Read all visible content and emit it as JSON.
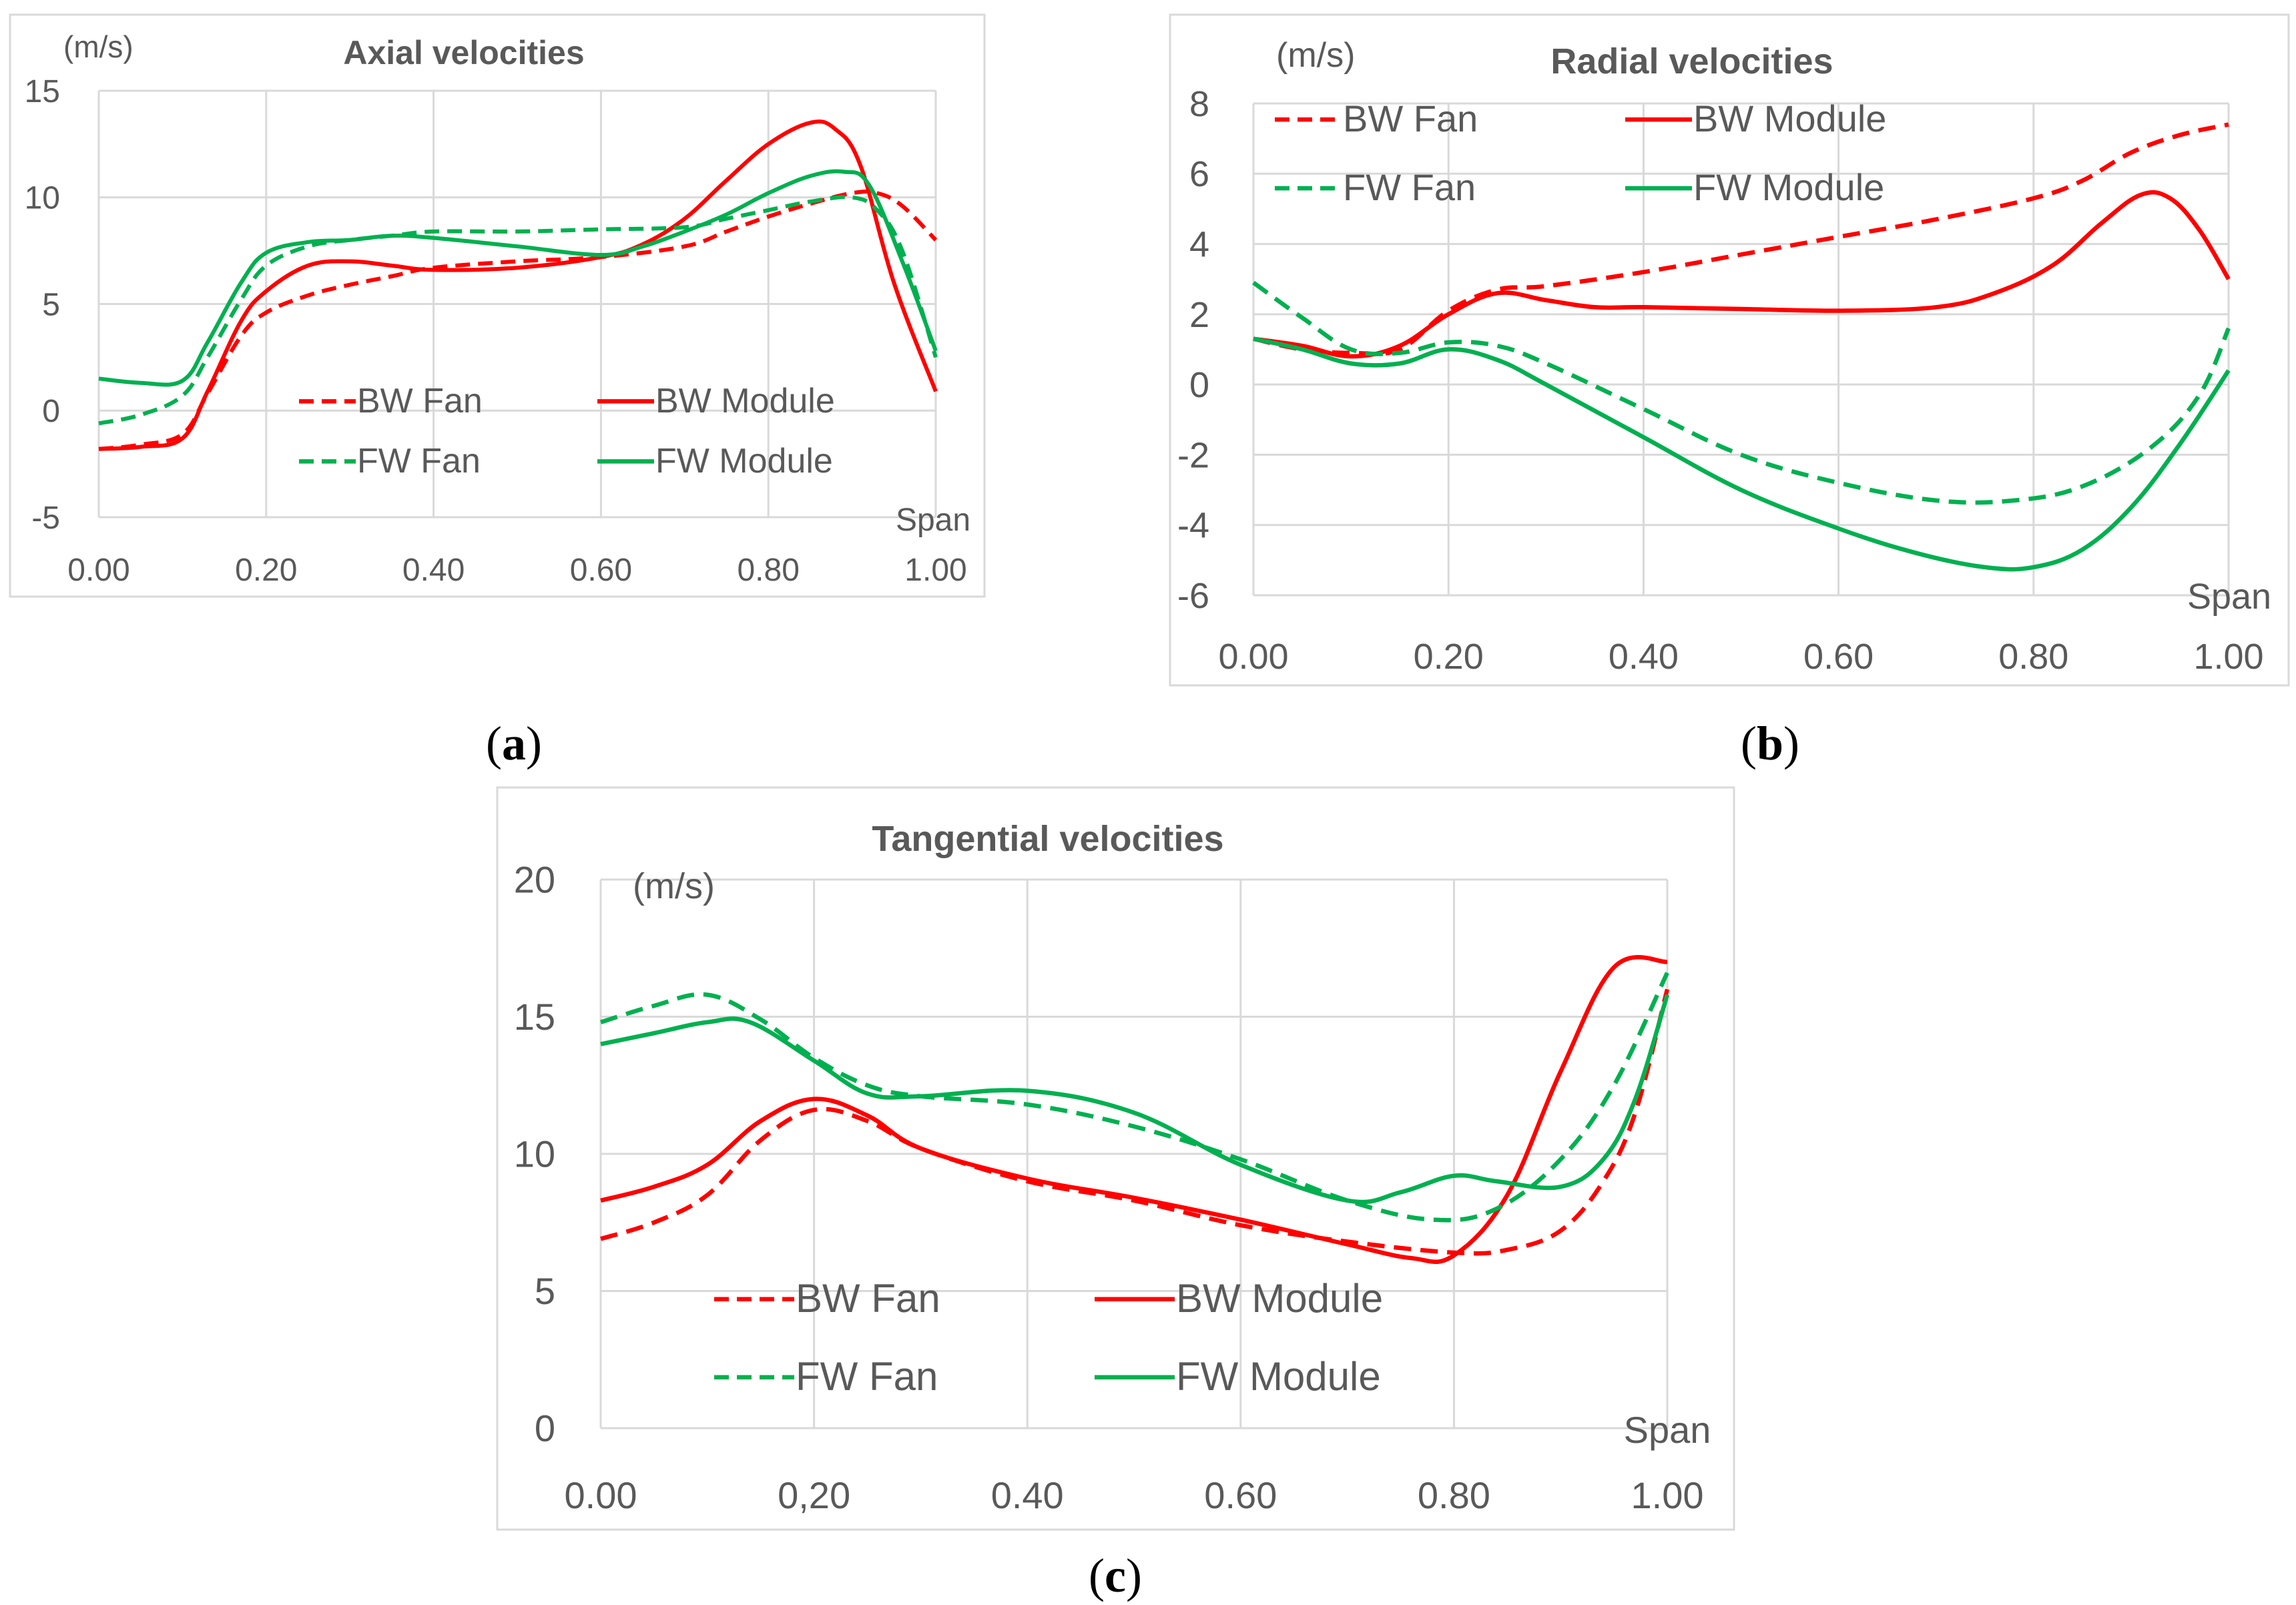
{
  "chart_data": [
    {
      "type": "line",
      "panel_label": "a",
      "title": "Axial velocities",
      "ylabel": "(m/s)",
      "xlabel": "Span",
      "xlim": [
        0,
        1
      ],
      "ylim": [
        -5,
        15
      ],
      "x_ticks": [
        "0.00",
        "0.20",
        "0.40",
        "0.60",
        "0.80",
        "1.00"
      ],
      "x_tick_values": [
        0,
        0.2,
        0.4,
        0.6,
        0.8,
        1.0
      ],
      "y_ticks": [
        "-5",
        "0",
        "5",
        "10",
        "15"
      ],
      "y_tick_values": [
        -5,
        0,
        5,
        10,
        15
      ],
      "legend": "inside-bottom",
      "series": [
        {
          "name": "BW Fan",
          "color": "#ff0000",
          "dash": true,
          "points": [
            [
              0,
              -1.8
            ],
            [
              0.05,
              -1.6
            ],
            [
              0.1,
              -1.1
            ],
            [
              0.13,
              0.8
            ],
            [
              0.17,
              3.5
            ],
            [
              0.2,
              4.6
            ],
            [
              0.25,
              5.4
            ],
            [
              0.3,
              5.9
            ],
            [
              0.35,
              6.3
            ],
            [
              0.4,
              6.7
            ],
            [
              0.5,
              7.0
            ],
            [
              0.6,
              7.2
            ],
            [
              0.7,
              7.7
            ],
            [
              0.75,
              8.4
            ],
            [
              0.8,
              9.1
            ],
            [
              0.85,
              9.7
            ],
            [
              0.9,
              10.2
            ],
            [
              0.93,
              10.2
            ],
            [
              0.96,
              9.6
            ],
            [
              1.0,
              8.0
            ]
          ]
        },
        {
          "name": "BW Module",
          "color": "#ff0000",
          "dash": false,
          "points": [
            [
              0,
              -1.8
            ],
            [
              0.05,
              -1.7
            ],
            [
              0.1,
              -1.3
            ],
            [
              0.13,
              0.9
            ],
            [
              0.17,
              4.2
            ],
            [
              0.2,
              5.6
            ],
            [
              0.25,
              6.8
            ],
            [
              0.3,
              7.0
            ],
            [
              0.35,
              6.8
            ],
            [
              0.4,
              6.6
            ],
            [
              0.5,
              6.7
            ],
            [
              0.6,
              7.2
            ],
            [
              0.65,
              7.8
            ],
            [
              0.7,
              9.0
            ],
            [
              0.75,
              10.8
            ],
            [
              0.8,
              12.5
            ],
            [
              0.85,
              13.5
            ],
            [
              0.88,
              13.2
            ],
            [
              0.91,
              11.5
            ],
            [
              0.95,
              6.0
            ],
            [
              1.0,
              0.9
            ]
          ]
        },
        {
          "name": "FW Fan",
          "color": "#00b050",
          "dash": true,
          "points": [
            [
              0,
              -0.6
            ],
            [
              0.05,
              -0.2
            ],
            [
              0.1,
              0.7
            ],
            [
              0.13,
              2.5
            ],
            [
              0.17,
              5.2
            ],
            [
              0.2,
              6.8
            ],
            [
              0.25,
              7.7
            ],
            [
              0.3,
              8.0
            ],
            [
              0.35,
              8.2
            ],
            [
              0.4,
              8.4
            ],
            [
              0.5,
              8.4
            ],
            [
              0.6,
              8.5
            ],
            [
              0.7,
              8.6
            ],
            [
              0.75,
              9.0
            ],
            [
              0.8,
              9.4
            ],
            [
              0.85,
              9.8
            ],
            [
              0.9,
              10.0
            ],
            [
              0.93,
              9.4
            ],
            [
              0.96,
              7.5
            ],
            [
              1.0,
              2.5
            ]
          ]
        },
        {
          "name": "FW Module",
          "color": "#00b050",
          "dash": false,
          "points": [
            [
              0,
              1.5
            ],
            [
              0.05,
              1.3
            ],
            [
              0.1,
              1.4
            ],
            [
              0.13,
              3.2
            ],
            [
              0.17,
              6.0
            ],
            [
              0.2,
              7.4
            ],
            [
              0.25,
              7.9
            ],
            [
              0.3,
              8.0
            ],
            [
              0.35,
              8.2
            ],
            [
              0.4,
              8.1
            ],
            [
              0.5,
              7.7
            ],
            [
              0.6,
              7.3
            ],
            [
              0.65,
              7.7
            ],
            [
              0.7,
              8.4
            ],
            [
              0.75,
              9.2
            ],
            [
              0.8,
              10.2
            ],
            [
              0.85,
              11.0
            ],
            [
              0.89,
              11.2
            ],
            [
              0.92,
              10.6
            ],
            [
              0.96,
              7.0
            ],
            [
              1.0,
              2.8
            ]
          ]
        }
      ]
    },
    {
      "type": "line",
      "panel_label": "b",
      "title": "Radial velocities",
      "ylabel": "(m/s)",
      "xlabel": "Span",
      "xlim": [
        0,
        1
      ],
      "ylim": [
        -6,
        8
      ],
      "x_ticks": [
        "0.00",
        "0.20",
        "0.40",
        "0.60",
        "0.80",
        "1.00"
      ],
      "x_tick_values": [
        0,
        0.2,
        0.4,
        0.6,
        0.8,
        1.0
      ],
      "y_ticks": [
        "-6",
        "-4",
        "-2",
        "0",
        "2",
        "4",
        "6",
        "8"
      ],
      "y_tick_values": [
        -6,
        -4,
        -2,
        0,
        2,
        4,
        6,
        8
      ],
      "legend": "top",
      "series": [
        {
          "name": "BW Fan",
          "color": "#ff0000",
          "dash": true,
          "points": [
            [
              0,
              1.3
            ],
            [
              0.05,
              1.0
            ],
            [
              0.1,
              0.9
            ],
            [
              0.15,
              1.0
            ],
            [
              0.2,
              2.1
            ],
            [
              0.25,
              2.7
            ],
            [
              0.3,
              2.8
            ],
            [
              0.4,
              3.2
            ],
            [
              0.5,
              3.7
            ],
            [
              0.6,
              4.2
            ],
            [
              0.7,
              4.7
            ],
            [
              0.8,
              5.3
            ],
            [
              0.85,
              5.8
            ],
            [
              0.9,
              6.6
            ],
            [
              0.95,
              7.1
            ],
            [
              1.0,
              7.4
            ]
          ]
        },
        {
          "name": "BW Module",
          "color": "#ff0000",
          "dash": false,
          "points": [
            [
              0,
              1.3
            ],
            [
              0.05,
              1.1
            ],
            [
              0.1,
              0.8
            ],
            [
              0.15,
              1.1
            ],
            [
              0.2,
              2.0
            ],
            [
              0.25,
              2.6
            ],
            [
              0.3,
              2.4
            ],
            [
              0.35,
              2.2
            ],
            [
              0.4,
              2.2
            ],
            [
              0.5,
              2.15
            ],
            [
              0.6,
              2.1
            ],
            [
              0.7,
              2.2
            ],
            [
              0.76,
              2.6
            ],
            [
              0.82,
              3.4
            ],
            [
              0.87,
              4.6
            ],
            [
              0.91,
              5.4
            ],
            [
              0.94,
              5.3
            ],
            [
              0.97,
              4.4
            ],
            [
              1.0,
              3.0
            ]
          ]
        },
        {
          "name": "FW Fan",
          "color": "#00b050",
          "dash": true,
          "points": [
            [
              0,
              2.9
            ],
            [
              0.05,
              1.9
            ],
            [
              0.1,
              1.0
            ],
            [
              0.15,
              0.9
            ],
            [
              0.2,
              1.2
            ],
            [
              0.25,
              1.1
            ],
            [
              0.3,
              0.6
            ],
            [
              0.4,
              -0.7
            ],
            [
              0.5,
              -2.0
            ],
            [
              0.6,
              -2.8
            ],
            [
              0.7,
              -3.3
            ],
            [
              0.78,
              -3.3
            ],
            [
              0.85,
              -2.9
            ],
            [
              0.92,
              -1.8
            ],
            [
              0.97,
              -0.3
            ],
            [
              1.0,
              1.6
            ]
          ]
        },
        {
          "name": "FW Module",
          "color": "#00b050",
          "dash": false,
          "points": [
            [
              0,
              1.3
            ],
            [
              0.05,
              1.0
            ],
            [
              0.1,
              0.6
            ],
            [
              0.15,
              0.6
            ],
            [
              0.2,
              1.0
            ],
            [
              0.25,
              0.7
            ],
            [
              0.3,
              0.0
            ],
            [
              0.4,
              -1.5
            ],
            [
              0.5,
              -3.0
            ],
            [
              0.6,
              -4.1
            ],
            [
              0.68,
              -4.8
            ],
            [
              0.75,
              -5.2
            ],
            [
              0.8,
              -5.2
            ],
            [
              0.85,
              -4.7
            ],
            [
              0.9,
              -3.5
            ],
            [
              0.95,
              -1.7
            ],
            [
              1.0,
              0.4
            ]
          ]
        }
      ]
    },
    {
      "type": "line",
      "panel_label": "c",
      "title": "Tangential velocities",
      "ylabel": "(m/s)",
      "xlabel": "Span",
      "xlim": [
        0,
        1
      ],
      "ylim": [
        0,
        20
      ],
      "x_ticks": [
        "0.00",
        "0,20",
        "0.40",
        "0.60",
        "0.80",
        "1.00"
      ],
      "x_tick_values": [
        0,
        0.2,
        0.4,
        0.6,
        0.8,
        1.0
      ],
      "y_ticks": [
        "0",
        "5",
        "10",
        "15",
        "20"
      ],
      "y_tick_values": [
        0,
        5,
        10,
        15,
        20
      ],
      "legend": "inside-bottom",
      "series": [
        {
          "name": "BW Fan",
          "color": "#ff0000",
          "dash": true,
          "points": [
            [
              0,
              6.9
            ],
            [
              0.05,
              7.5
            ],
            [
              0.1,
              8.5
            ],
            [
              0.15,
              10.5
            ],
            [
              0.2,
              11.6
            ],
            [
              0.25,
              11.2
            ],
            [
              0.3,
              10.2
            ],
            [
              0.4,
              9.0
            ],
            [
              0.5,
              8.3
            ],
            [
              0.6,
              7.4
            ],
            [
              0.7,
              6.8
            ],
            [
              0.8,
              6.4
            ],
            [
              0.85,
              6.5
            ],
            [
              0.9,
              7.2
            ],
            [
              0.94,
              9.0
            ],
            [
              0.97,
              11.5
            ],
            [
              1.0,
              16.0
            ]
          ]
        },
        {
          "name": "BW Module",
          "color": "#ff0000",
          "dash": false,
          "points": [
            [
              0,
              8.3
            ],
            [
              0.05,
              8.8
            ],
            [
              0.1,
              9.6
            ],
            [
              0.15,
              11.2
            ],
            [
              0.2,
              12.0
            ],
            [
              0.25,
              11.4
            ],
            [
              0.3,
              10.2
            ],
            [
              0.4,
              9.1
            ],
            [
              0.5,
              8.4
            ],
            [
              0.6,
              7.6
            ],
            [
              0.7,
              6.7
            ],
            [
              0.76,
              6.2
            ],
            [
              0.8,
              6.3
            ],
            [
              0.85,
              8.5
            ],
            [
              0.9,
              13.0
            ],
            [
              0.95,
              16.8
            ],
            [
              1.0,
              17.0
            ]
          ]
        },
        {
          "name": "FW Fan",
          "color": "#00b050",
          "dash": true,
          "points": [
            [
              0,
              14.8
            ],
            [
              0.05,
              15.4
            ],
            [
              0.1,
              15.8
            ],
            [
              0.15,
              14.9
            ],
            [
              0.2,
              13.5
            ],
            [
              0.25,
              12.5
            ],
            [
              0.3,
              12.1
            ],
            [
              0.4,
              11.8
            ],
            [
              0.5,
              11.0
            ],
            [
              0.6,
              9.8
            ],
            [
              0.7,
              8.3
            ],
            [
              0.78,
              7.6
            ],
            [
              0.84,
              8.0
            ],
            [
              0.9,
              9.8
            ],
            [
              0.95,
              12.5
            ],
            [
              1.0,
              16.6
            ]
          ]
        },
        {
          "name": "FW Module",
          "color": "#00b050",
          "dash": false,
          "points": [
            [
              0,
              14.0
            ],
            [
              0.05,
              14.4
            ],
            [
              0.1,
              14.8
            ],
            [
              0.14,
              14.8
            ],
            [
              0.2,
              13.4
            ],
            [
              0.25,
              12.2
            ],
            [
              0.3,
              12.1
            ],
            [
              0.4,
              12.3
            ],
            [
              0.5,
              11.5
            ],
            [
              0.6,
              9.6
            ],
            [
              0.7,
              8.3
            ],
            [
              0.75,
              8.6
            ],
            [
              0.8,
              9.2
            ],
            [
              0.84,
              9.0
            ],
            [
              0.9,
              8.8
            ],
            [
              0.94,
              9.8
            ],
            [
              0.97,
              12.0
            ],
            [
              1.0,
              15.8
            ]
          ]
        }
      ]
    }
  ]
}
